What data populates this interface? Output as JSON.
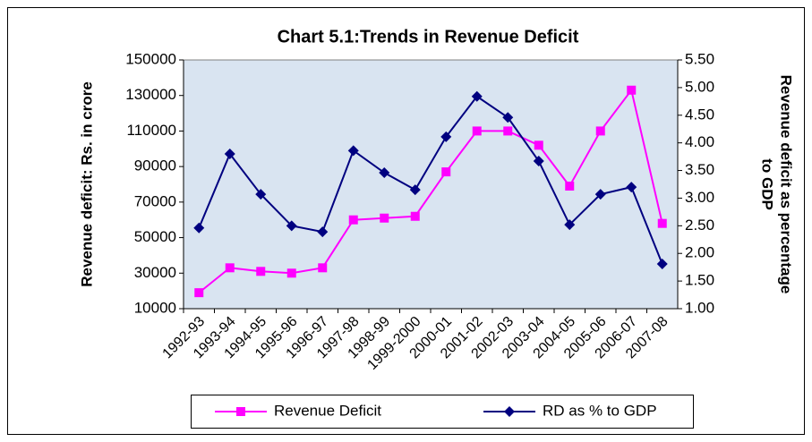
{
  "chart_data": {
    "type": "line",
    "title": "Chart 5.1:Trends in Revenue Deficit",
    "ylabel": "Revenue deficit: Rs. in crore",
    "y2label": [
      "Revenue deficit as percentage",
      "to GDP"
    ],
    "categories": [
      "1992-93",
      "1993-94",
      "1994-95",
      "1995-96",
      "1996-97",
      "1997-98",
      "1998-99",
      "1999-2000",
      "2000-01",
      "2001-02",
      "2002-03",
      "2003-04",
      "2004-05",
      "2005-06",
      "2006-07",
      "2007-08"
    ],
    "series": [
      {
        "name": "Revenue Deficit",
        "color": "#ff00ff",
        "marker": "square",
        "values": [
          19000,
          33000,
          31000,
          30000,
          33000,
          60000,
          61000,
          62000,
          87000,
          110000,
          110000,
          102000,
          79000,
          110000,
          133000,
          58000
        ]
      },
      {
        "name": "RD as % to GDP",
        "color": "#000080",
        "marker": "diamond",
        "axis": "y2",
        "values": [
          2.46,
          3.8,
          3.07,
          2.5,
          2.39,
          3.86,
          3.46,
          3.15,
          4.11,
          4.84,
          4.46,
          3.67,
          2.52,
          3.07,
          3.2,
          1.81
        ]
      }
    ],
    "ylim": [
      10000,
      150000
    ],
    "yticks": [
      10000,
      30000,
      50000,
      70000,
      90000,
      110000,
      130000,
      150000
    ],
    "y2lim": [
      1.0,
      5.5
    ],
    "y2ticks": [
      {
        "value": 1.0,
        "label": "1.00"
      },
      {
        "value": 1.5,
        "label": "1.50"
      },
      {
        "value": 2.0,
        "label": "2.00"
      },
      {
        "value": 2.5,
        "label": "2.50"
      },
      {
        "value": 3.0,
        "label": "3.00"
      },
      {
        "value": 3.5,
        "label": "3.50"
      },
      {
        "value": 4.0,
        "label": "4.00"
      },
      {
        "value": 4.5,
        "label": "4.50"
      },
      {
        "value": 5.0,
        "label": "5.00"
      },
      {
        "value": 5.5,
        "label": "5.50"
      }
    ],
    "legend": "bottom",
    "plot_background": "#d9e4f1"
  }
}
